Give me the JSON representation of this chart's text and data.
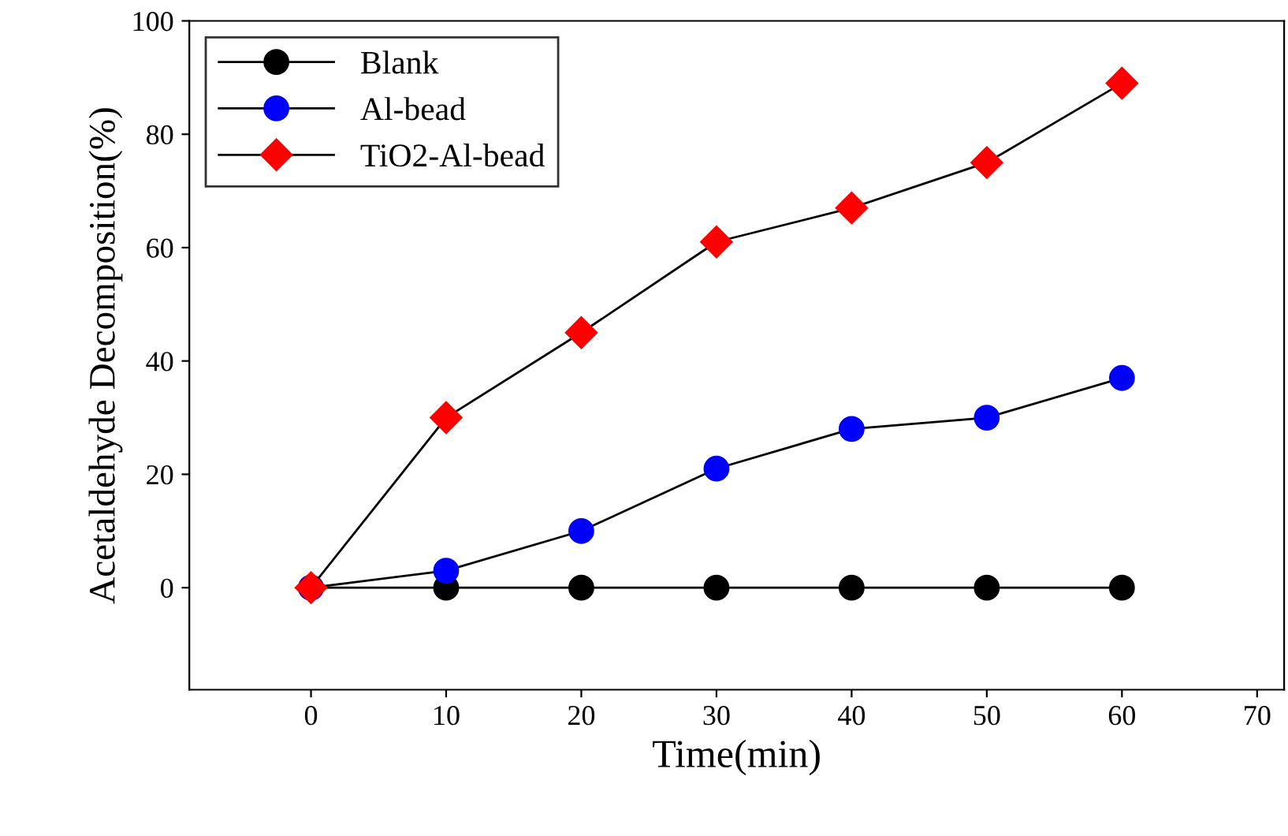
{
  "chart_data": {
    "type": "line",
    "xlabel": "Time(min)",
    "ylabel": "Acetaldehyde Decomposition(%)",
    "x": [
      0,
      10,
      20,
      30,
      40,
      50,
      60
    ],
    "series": [
      {
        "name": "Blank",
        "color": "#000000",
        "marker": "circle",
        "values": [
          0,
          0,
          0,
          0,
          0,
          0,
          0
        ]
      },
      {
        "name": "Al-bead",
        "color": "#0000ff",
        "marker": "circle",
        "values": [
          0,
          3,
          10,
          21,
          28,
          30,
          37
        ]
      },
      {
        "name": "TiO2-Al-bead",
        "color": "#ff0000",
        "marker": "diamond",
        "values": [
          0,
          30,
          45,
          61,
          67,
          75,
          89
        ]
      }
    ],
    "xlim": [
      -9,
      72
    ],
    "xticks": [
      0,
      10,
      20,
      30,
      40,
      50,
      60,
      70
    ],
    "ylim": [
      -18,
      100
    ],
    "yticks": [
      0,
      20,
      40,
      60,
      80,
      100
    ],
    "grid": false,
    "legend": "top left",
    "line_style": "solid"
  }
}
